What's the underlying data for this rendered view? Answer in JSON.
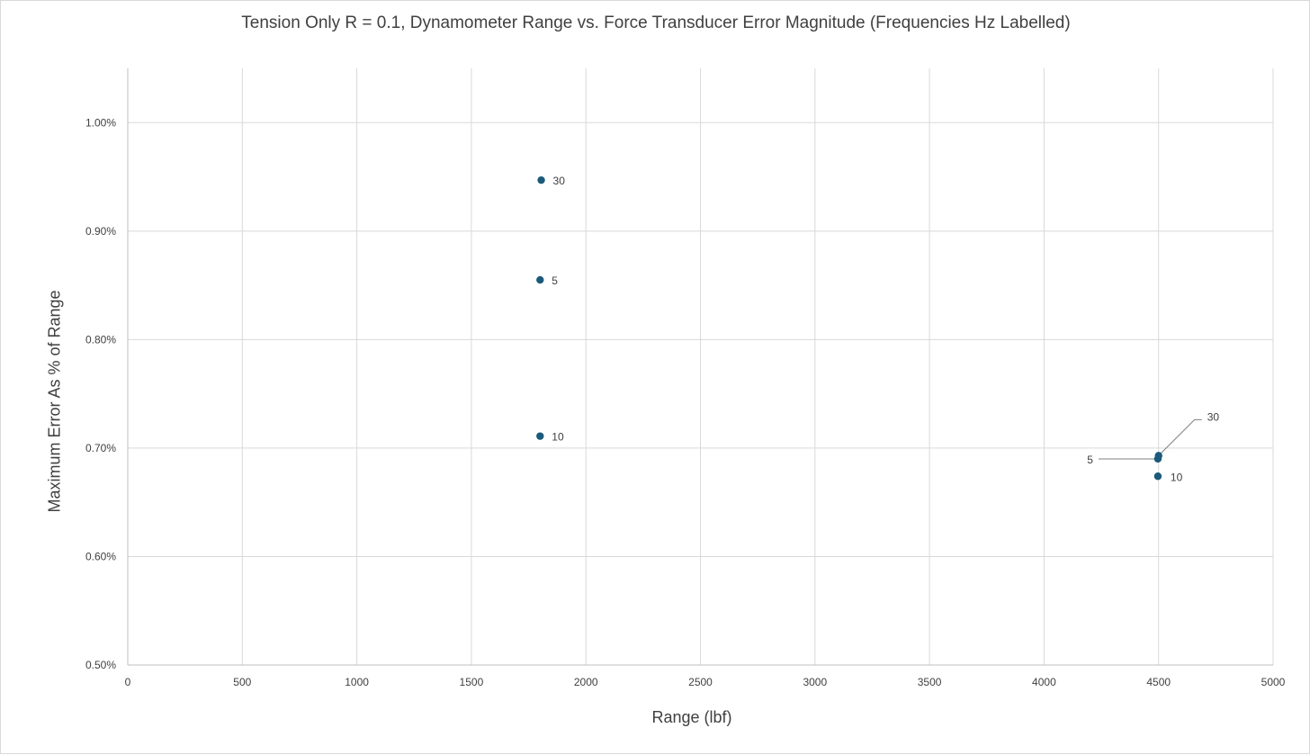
{
  "chart_data": {
    "type": "scatter",
    "title": "Tension Only R = 0.1, Dynamometer Range vs. Force Transducer Error Magnitude (Frequencies Hz Labelled)",
    "xlabel": "Range (lbf)",
    "ylabel": "Maximum Error As % of Range",
    "xlim": [
      0,
      5000
    ],
    "ylim": [
      0.005,
      0.0105
    ],
    "x_ticks": [
      0,
      500,
      1000,
      1500,
      2000,
      2500,
      3000,
      3500,
      4000,
      4500,
      5000
    ],
    "x_tick_labels": [
      "0",
      "500",
      "1000",
      "1500",
      "2000",
      "2500",
      "3000",
      "3500",
      "4000",
      "4500",
      "5000"
    ],
    "y_ticks": [
      0.005,
      0.006,
      0.007,
      0.008,
      0.009,
      0.01
    ],
    "y_tick_labels": [
      "0.50%",
      "0.60%",
      "0.70%",
      "0.80%",
      "0.90%",
      "1.00%"
    ],
    "grid": true,
    "marker_color": "#1b5a7a",
    "points": [
      {
        "x": 1805,
        "y": 0.00947,
        "label": "30"
      },
      {
        "x": 1800,
        "y": 0.00855,
        "label": "5"
      },
      {
        "x": 1800,
        "y": 0.00711,
        "label": "10"
      },
      {
        "x": 4500,
        "y": 0.00693,
        "label": "30"
      },
      {
        "x": 4497,
        "y": 0.0069,
        "label": "5"
      },
      {
        "x": 4497,
        "y": 0.00674,
        "label": "10"
      }
    ]
  }
}
